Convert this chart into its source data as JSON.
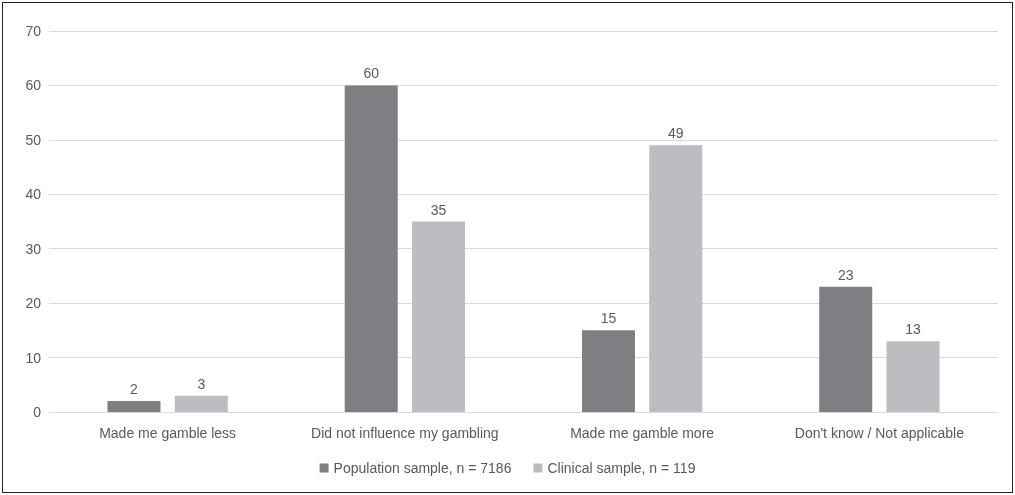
{
  "chart_data": {
    "type": "bar",
    "categories": [
      "Made me gamble less",
      "Did not influence my gambling",
      "Made me gamble more",
      "Don't know / Not applicable"
    ],
    "series": [
      {
        "name": "Population sample, n = 7186",
        "color": "#7f7f83",
        "values": [
          2,
          60,
          15,
          23
        ]
      },
      {
        "name": "Clinical sample, n = 119",
        "color": "#bcbdc1",
        "values": [
          3,
          35,
          49,
          13
        ]
      }
    ],
    "ylim": [
      0,
      70
    ],
    "yticks": [
      0,
      10,
      20,
      30,
      40,
      50,
      60,
      70
    ],
    "grid": "y",
    "legend": "bottom",
    "data_labels": true
  }
}
